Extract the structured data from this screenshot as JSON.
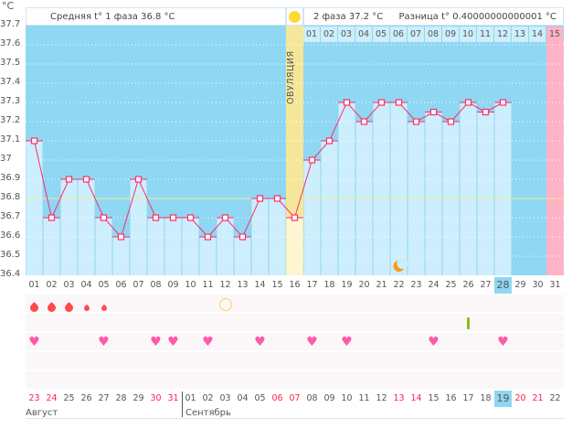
{
  "header": {
    "unit": "°C",
    "phase1": "Средняя t° 1 фаза 36.8 °C",
    "phase2": "2 фаза 37.2 °C",
    "diff": "Разница t° 0.40000000000001 °C",
    "ovulation_label": "ОВУЛЯЦИЯ"
  },
  "colors": {
    "bg_dark": "#8fd7f2",
    "bar": "#cdeefc",
    "line": "#ff2d6a",
    "ovulation": "#f5e79a",
    "pink": "#ffb3c6",
    "coverline": "#f4ea9a"
  },
  "chart_data": {
    "type": "line",
    "title": "",
    "ylabel": "°C",
    "ylim": [
      36.4,
      37.7
    ],
    "yticks": [
      "37.7",
      "37.6",
      "37.5",
      "37.4",
      "37.3",
      "37.2",
      "37.1",
      "37",
      "36.9",
      "36.8",
      "36.7",
      "36.6",
      "36.5",
      "36.4"
    ],
    "cycle_days": [
      "01",
      "02",
      "03",
      "04",
      "05",
      "06",
      "07",
      "08",
      "09",
      "10",
      "11",
      "12",
      "13",
      "14",
      "15",
      "16",
      "17",
      "18",
      "19",
      "20",
      "21",
      "22",
      "23",
      "24",
      "25",
      "26",
      "27",
      "28",
      "29",
      "30",
      "31"
    ],
    "temperatures": [
      37.1,
      36.7,
      36.9,
      36.9,
      36.7,
      36.6,
      36.9,
      36.7,
      36.7,
      36.7,
      36.6,
      36.7,
      36.6,
      36.8,
      36.8,
      36.7,
      37.0,
      37.1,
      37.3,
      37.2,
      37.3,
      37.3,
      37.2,
      37.25,
      37.2,
      37.3,
      37.25,
      37.3,
      null,
      null,
      null
    ],
    "coverline": 36.8,
    "ovulation_day": 16,
    "current_day": 28,
    "phase2_labels": [
      "01",
      "02",
      "03",
      "04",
      "05",
      "06",
      "07",
      "08",
      "09",
      "10",
      "11",
      "12",
      "13",
      "14",
      "15"
    ],
    "moon_day": 22
  },
  "markers": {
    "bleeding": [
      {
        "day": 1,
        "size": "big"
      },
      {
        "day": 2,
        "size": "big"
      },
      {
        "day": 3,
        "size": "big"
      },
      {
        "day": 4,
        "size": "small"
      },
      {
        "day": 5,
        "size": "small"
      }
    ],
    "ovulation_test_day": 12,
    "green_mark_day": 26,
    "heart_days": [
      1,
      5,
      8,
      9,
      11,
      14,
      17,
      19,
      24,
      28
    ]
  },
  "dates": {
    "values": [
      "23",
      "24",
      "25",
      "26",
      "27",
      "28",
      "29",
      "30",
      "31",
      "01",
      "02",
      "03",
      "04",
      "05",
      "06",
      "07",
      "08",
      "09",
      "10",
      "11",
      "12",
      "13",
      "14",
      "15",
      "16",
      "17",
      "18",
      "19",
      "20",
      "21",
      "22"
    ],
    "weekend_indices": [
      0,
      1,
      7,
      8,
      14,
      15,
      21,
      22,
      28,
      29
    ],
    "today_index": 27,
    "months": [
      "Август",
      "Сентябрь"
    ]
  }
}
